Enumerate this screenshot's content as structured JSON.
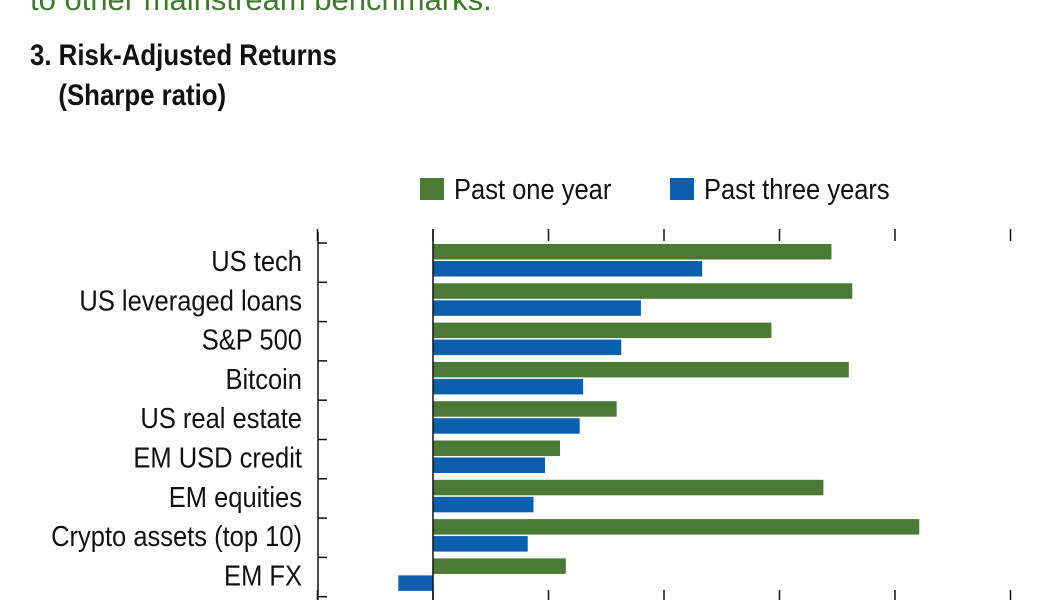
{
  "header": {
    "intro_text": "to other mainstream benchmarks.",
    "title": "3. Risk-Adjusted Returns",
    "subtitle": "(Sharpe ratio)"
  },
  "chart_data": {
    "type": "bar",
    "orientation": "horizontal",
    "title": "3. Risk-Adjusted Returns",
    "subtitle": "(Sharpe ratio)",
    "categories": [
      "US tech",
      "US leveraged loans",
      "S&P 500",
      "Bitcoin",
      "US real estate",
      "EM USD credit",
      "EM equities",
      "Crypto assets (top 10)",
      "EM FX"
    ],
    "series": [
      {
        "name": "Past one year",
        "color": "#4a7a36",
        "values": [
          3.45,
          3.63,
          2.93,
          3.6,
          1.59,
          1.1,
          3.38,
          4.21,
          1.15
        ]
      },
      {
        "name": "Past three years",
        "color": "#0b5fad",
        "values": [
          2.33,
          1.8,
          1.63,
          1.3,
          1.27,
          0.97,
          0.87,
          0.82,
          -0.3
        ]
      }
    ],
    "xlim": [
      -1,
      5
    ],
    "grid": false,
    "legend_position": "top"
  }
}
